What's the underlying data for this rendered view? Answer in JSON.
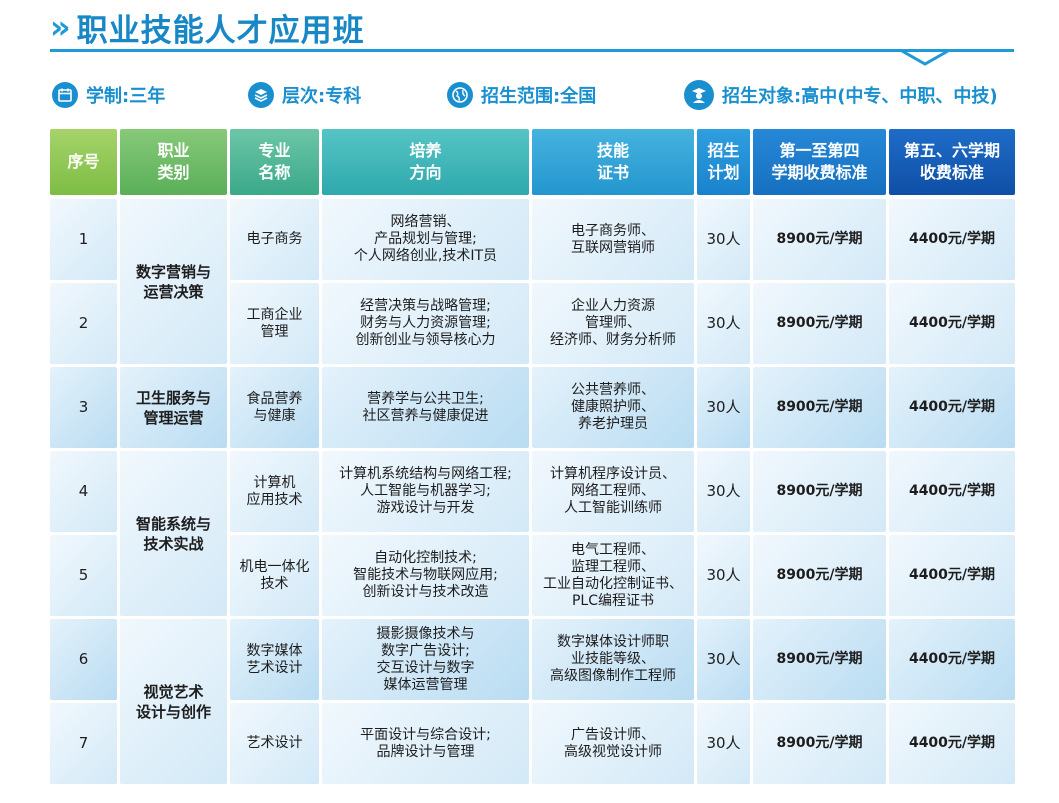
{
  "header": {
    "chevron": "»",
    "title": "职业技能人才应用班"
  },
  "info": {
    "duration": "学制:三年",
    "level": "层次:专科",
    "scope": "招生范围:全国",
    "target": "招生对象:高中(中专、中职、中技)",
    "icon_colors": [
      "#1a8fcf",
      "#1a8fcf",
      "#1a8fcf",
      "#1a8fcf"
    ]
  },
  "columns": [
    "序号",
    "职业\n类别",
    "专业\n名称",
    "培养\n方向",
    "技能\n证书",
    "招生\n计划",
    "第一至第四\n学期收费标准",
    "第五、六学期\n收费标准"
  ],
  "categories": [
    {
      "name": "数字营销与\n运营决策"
    },
    {
      "name": "卫生服务与\n管理运营"
    },
    {
      "name": "智能系统与\n技术实战"
    },
    {
      "name": "视觉艺术\n设计与创作"
    }
  ],
  "rows": [
    {
      "no": "1",
      "major": "电子商务",
      "direction": "网络营销、\n产品规划与管理;\n个人网络创业,技术IT员",
      "cert": "电子商务师、\n互联网营销师",
      "plan": "30人",
      "fee1": "8900元/学期",
      "fee2": "4400元/学期"
    },
    {
      "no": "2",
      "major": "工商企业\n管理",
      "direction": "经营决策与战略管理;\n财务与人力资源管理;\n创新创业与领导核心力",
      "cert": "企业人力资源\n管理师、\n经济师、财务分析师",
      "plan": "30人",
      "fee1": "8900元/学期",
      "fee2": "4400元/学期"
    },
    {
      "no": "3",
      "major": "食品营养\n与健康",
      "direction": "营养学与公共卫生;\n社区营养与健康促进",
      "cert": "公共营养师、\n健康照护师、\n养老护理员",
      "plan": "30人",
      "fee1": "8900元/学期",
      "fee2": "4400元/学期"
    },
    {
      "no": "4",
      "major": "计算机\n应用技术",
      "direction": "计算机系统结构与网络工程;\n人工智能与机器学习;\n游戏设计与开发",
      "cert": "计算机程序设计员、\n网络工程师、\n人工智能训练师",
      "plan": "30人",
      "fee1": "8900元/学期",
      "fee2": "4400元/学期"
    },
    {
      "no": "5",
      "major": "机电一体化\n技术",
      "direction": "自动化控制技术;\n智能技术与物联网应用;\n创新设计与技术改造",
      "cert": "电气工程师、\n监理工程师、\n工业自动化控制证书、\nPLC编程证书",
      "plan": "30人",
      "fee1": "8900元/学期",
      "fee2": "4400元/学期"
    },
    {
      "no": "6",
      "major": "数字媒体\n艺术设计",
      "direction": "摄影摄像技术与\n数字广告设计;\n交互设计与数字\n媒体运营管理",
      "cert": "数字媒体设计师职\n业技能等级、\n高级图像制作工程师",
      "plan": "30人",
      "fee1": "8900元/学期",
      "fee2": "4400元/学期"
    },
    {
      "no": "7",
      "major": "艺术设计",
      "direction": "平面设计与综合设计;\n品牌设计与管理",
      "cert": "广告设计师、\n高级视觉设计师",
      "plan": "30人",
      "fee1": "8900元/学期",
      "fee2": "4400元/学期"
    }
  ]
}
